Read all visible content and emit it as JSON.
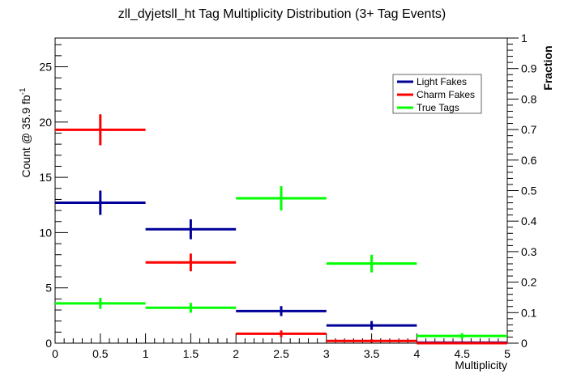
{
  "chart_data": {
    "type": "scatter",
    "title": "zll_dyjetsll_ht Tag Multiplicity Distribution (3+ Tag Events)",
    "xlabel": "Multiplicity",
    "ylabel": "Count @ 35.9 fb",
    "ylabel_sup": "-1",
    "y2label": "Fraction",
    "xlim": [
      0,
      5
    ],
    "ylim": [
      0,
      27.6
    ],
    "y2lim": [
      0,
      1
    ],
    "xticks": [
      "0",
      "0.5",
      "1",
      "1.5",
      "2",
      "2.5",
      "3",
      "3.5",
      "4",
      "4.5",
      "5"
    ],
    "yticks": [
      "0",
      "5",
      "10",
      "15",
      "20",
      "25"
    ],
    "y2ticks": [
      "0",
      "0.1",
      "0.2",
      "0.3",
      "0.4",
      "0.5",
      "0.6",
      "0.7",
      "0.8",
      "0.9",
      "1"
    ],
    "legend_position": "top-right",
    "bin_edges": [
      0,
      1,
      2,
      3,
      4,
      5
    ],
    "series": [
      {
        "name": "Light Fakes",
        "color": "#000099",
        "values": [
          12.7,
          10.3,
          2.9,
          1.6,
          0.05
        ],
        "errors": [
          1.1,
          0.9,
          0.45,
          0.4,
          0.05
        ]
      },
      {
        "name": "Charm Fakes",
        "color": "#ff0000",
        "values": [
          19.3,
          7.3,
          0.85,
          0.2,
          0
        ],
        "errors": [
          1.4,
          0.8,
          0.3,
          0.15,
          0
        ]
      },
      {
        "name": "True Tags",
        "color": "#00ff00",
        "values": [
          3.6,
          3.2,
          13.1,
          7.2,
          0.65
        ],
        "errors": [
          0.5,
          0.45,
          1.1,
          0.8,
          0.25
        ]
      }
    ]
  }
}
